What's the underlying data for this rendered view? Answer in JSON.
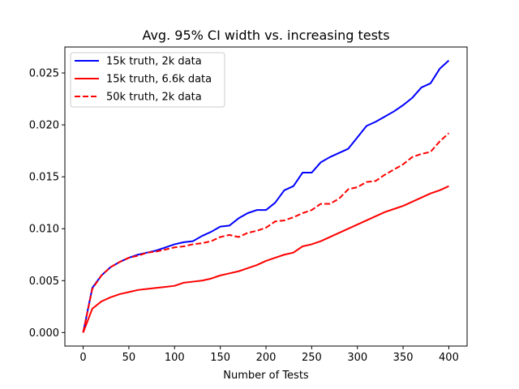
{
  "chart_data": {
    "type": "line",
    "title": "Avg. 95% CI width vs. increasing tests",
    "xlabel": "Number of Tests",
    "ylabel": "",
    "xlim": [
      -20,
      420
    ],
    "ylim": [
      -0.0013,
      0.0275
    ],
    "xticks": [
      0,
      50,
      100,
      150,
      200,
      250,
      300,
      350,
      400
    ],
    "xtick_labels": [
      "0",
      "50",
      "100",
      "150",
      "200",
      "250",
      "300",
      "350",
      "400"
    ],
    "yticks": [
      0.0,
      0.005,
      0.01,
      0.015,
      0.02,
      0.025
    ],
    "ytick_labels": [
      "0.000",
      "0.005",
      "0.010",
      "0.015",
      "0.020",
      "0.025"
    ],
    "grid": false,
    "legend_position": "upper-left",
    "x": [
      0,
      10,
      20,
      30,
      40,
      50,
      60,
      70,
      80,
      90,
      100,
      110,
      120,
      130,
      140,
      150,
      160,
      170,
      180,
      190,
      200,
      210,
      220,
      230,
      240,
      250,
      260,
      270,
      280,
      290,
      300,
      310,
      320,
      330,
      340,
      350,
      360,
      370,
      380,
      390,
      400
    ],
    "series": [
      {
        "name": "15k truth, 2k data",
        "color": "#0000ff",
        "style": "solid",
        "values": [
          0.0,
          0.0043,
          0.0055,
          0.0063,
          0.0068,
          0.0072,
          0.0075,
          0.0077,
          0.0079,
          0.0082,
          0.0085,
          0.0087,
          0.0088,
          0.0093,
          0.0097,
          0.0102,
          0.0103,
          0.011,
          0.0115,
          0.0118,
          0.0118,
          0.0125,
          0.0137,
          0.0141,
          0.0154,
          0.0154,
          0.0164,
          0.0169,
          0.0173,
          0.0177,
          0.0188,
          0.0199,
          0.0203,
          0.0208,
          0.0213,
          0.0219,
          0.0226,
          0.0236,
          0.024,
          0.0254,
          0.0262
        ]
      },
      {
        "name": "15k truth, 6.6k data",
        "color": "#ff0000",
        "style": "solid",
        "values": [
          0.0,
          0.0023,
          0.003,
          0.0034,
          0.0037,
          0.0039,
          0.0041,
          0.0042,
          0.0043,
          0.0044,
          0.0045,
          0.0048,
          0.0049,
          0.005,
          0.0052,
          0.0055,
          0.0057,
          0.0059,
          0.0062,
          0.0065,
          0.0069,
          0.0072,
          0.0075,
          0.0077,
          0.0083,
          0.0085,
          0.0088,
          0.0092,
          0.0096,
          0.01,
          0.0104,
          0.0108,
          0.0112,
          0.0116,
          0.0119,
          0.0122,
          0.0126,
          0.013,
          0.0134,
          0.0137,
          0.0141
        ]
      },
      {
        "name": "50k truth, 2k data",
        "color": "#ff0000",
        "style": "dashed",
        "values": [
          0.0,
          0.0042,
          0.0055,
          0.0063,
          0.0068,
          0.0072,
          0.0074,
          0.0077,
          0.0078,
          0.008,
          0.0082,
          0.0083,
          0.0085,
          0.0086,
          0.0088,
          0.0092,
          0.0094,
          0.0092,
          0.0096,
          0.0098,
          0.0101,
          0.0107,
          0.0108,
          0.0111,
          0.0115,
          0.0118,
          0.0124,
          0.0124,
          0.0129,
          0.0138,
          0.014,
          0.0145,
          0.0146,
          0.0152,
          0.0157,
          0.0162,
          0.0169,
          0.0172,
          0.0174,
          0.0184,
          0.0192
        ]
      }
    ]
  }
}
